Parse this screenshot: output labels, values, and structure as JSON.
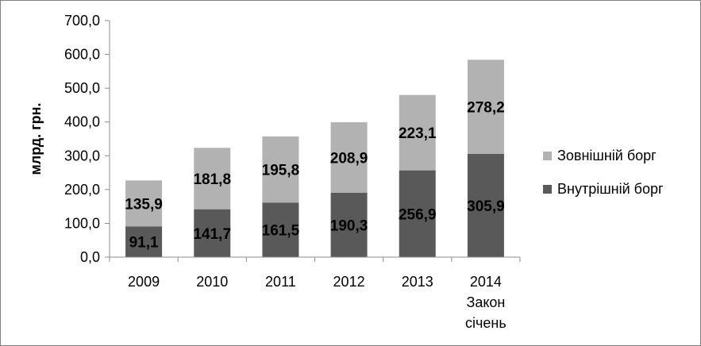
{
  "chart_data": {
    "type": "bar",
    "stacked": true,
    "ylabel": "млрд. грн.",
    "ylim": [
      0,
      700
    ],
    "yticks": [
      "0,0",
      "100,0",
      "200,0",
      "300,0",
      "400,0",
      "500,0",
      "600,0",
      "700,0"
    ],
    "grid": false,
    "legend_position": "right",
    "categories": [
      [
        "2009"
      ],
      [
        "2010"
      ],
      [
        "2011"
      ],
      [
        "2012"
      ],
      [
        "2013"
      ],
      [
        "2014",
        "Закон",
        "січень"
      ]
    ],
    "series": [
      {
        "name": "Внутрішній борг",
        "color": "#595959",
        "values": [
          91.1,
          141.7,
          161.5,
          190.3,
          256.9,
          305.9
        ],
        "labels": [
          "91,1",
          "141,7",
          "161,5",
          "190,3",
          "256,9",
          "305,9"
        ]
      },
      {
        "name": "Зовнішній борг",
        "color": "#b2b2b2",
        "values": [
          135.9,
          181.8,
          195.8,
          208.9,
          223.1,
          278.2
        ],
        "labels": [
          "135,9",
          "181,8",
          "195,8",
          "208,9",
          "223,1",
          "278,2"
        ]
      }
    ],
    "legend_order": [
      1,
      0
    ]
  }
}
